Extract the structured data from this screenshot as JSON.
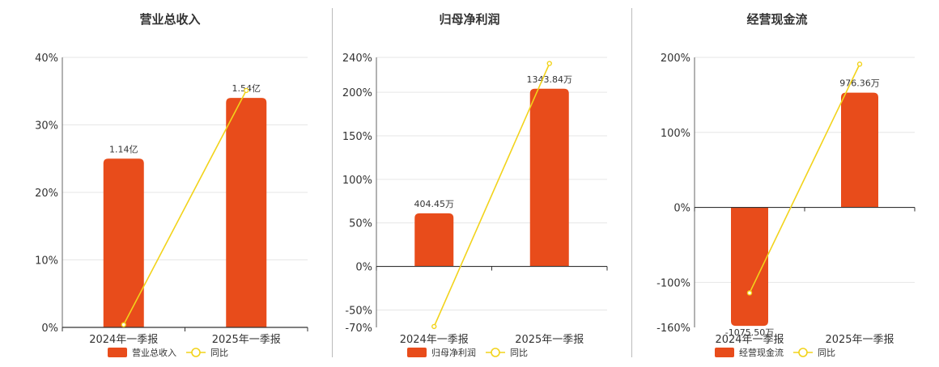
{
  "colors": {
    "bar": "#e84c1b",
    "line": "#f2d31b",
    "grid": "#e6e6e6",
    "axis": "#333333"
  },
  "legend_line_label": "同比",
  "chart_data": [
    {
      "type": "bar",
      "title": "营业总收入",
      "categories": [
        "2024年一季报",
        "2025年一季报"
      ],
      "ylim": [
        0,
        40
      ],
      "yticks": [
        0,
        10,
        20,
        30,
        40
      ],
      "series": [
        {
          "name": "营业总收入",
          "kind": "bar",
          "values": [
            25,
            34
          ],
          "labels": [
            "1.14亿",
            "1.54亿"
          ]
        },
        {
          "name": "同比",
          "kind": "line",
          "values": [
            0.4,
            35.1
          ]
        }
      ]
    },
    {
      "type": "bar",
      "title": "归母净利润",
      "categories": [
        "2024年一季报",
        "2025年一季报"
      ],
      "ylim": [
        -70,
        240
      ],
      "yticks": [
        -70,
        -50,
        0,
        50,
        100,
        150,
        200,
        240
      ],
      "series": [
        {
          "name": "归母净利润",
          "kind": "bar",
          "values": [
            61,
            204
          ],
          "labels": [
            "404.45万",
            "1343.84万"
          ]
        },
        {
          "name": "同比",
          "kind": "line",
          "values": [
            -69,
            233
          ]
        }
      ]
    },
    {
      "type": "bar",
      "title": "经营现金流",
      "categories": [
        "2024年一季报",
        "2025年一季报"
      ],
      "ylim": [
        -160,
        200
      ],
      "yticks": [
        -160,
        -100,
        0,
        100,
        200
      ],
      "series": [
        {
          "name": "经营现金流",
          "kind": "bar",
          "values": [
            -158,
            153
          ],
          "labels": [
            "-1075.50万",
            "976.36万"
          ]
        },
        {
          "name": "同比",
          "kind": "line",
          "values": [
            -114,
            191
          ]
        }
      ]
    }
  ]
}
